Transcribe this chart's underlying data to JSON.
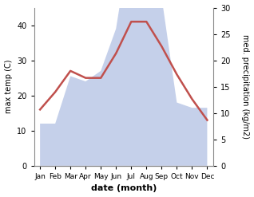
{
  "months": [
    "Jan",
    "Feb",
    "Mar",
    "Apr",
    "May",
    "Jun",
    "Jul",
    "Aug",
    "Sep",
    "Oct",
    "Nov",
    "Dec"
  ],
  "temperature": [
    16,
    21,
    27,
    25,
    25,
    32,
    41,
    41,
    34,
    26,
    19,
    13
  ],
  "precipitation": [
    8,
    8,
    17,
    16,
    18,
    26,
    44,
    45,
    32,
    12,
    11,
    11
  ],
  "temp_color": "#c0504d",
  "precip_fill_color": "#c5d0ea",
  "xlabel": "date (month)",
  "ylabel_left": "max temp (C)",
  "ylabel_right": "med. precipitation (kg/m2)",
  "ylim_left": [
    0,
    45
  ],
  "ylim_right": [
    0,
    30
  ],
  "yticks_left": [
    0,
    10,
    20,
    30,
    40
  ],
  "yticks_right": [
    0,
    5,
    10,
    15,
    20,
    25,
    30
  ],
  "bg_color": "#ffffff",
  "line_width": 1.8
}
